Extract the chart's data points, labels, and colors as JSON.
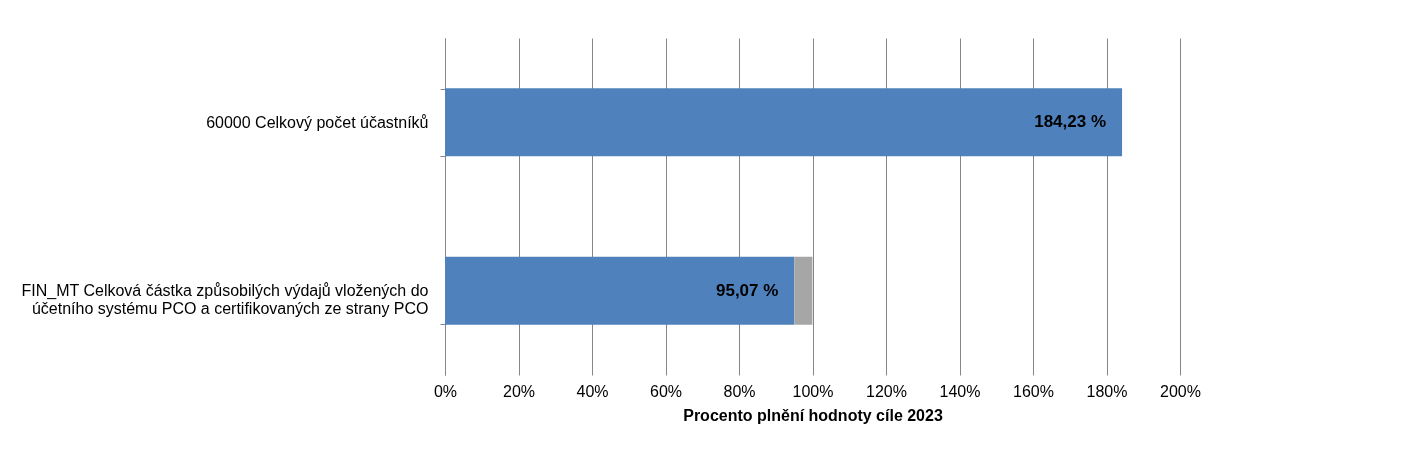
{
  "chart_data": {
    "type": "bar",
    "orientation": "horizontal",
    "stacked": true,
    "categories": [
      "60000 Celkový počet účastníků",
      "FIN_MT Celková částka způsobilých výdajů vložených do účetního systému PCO a certifikovaných ze strany PCO"
    ],
    "series": [
      {
        "color": "#4f81bd",
        "values": [
          184.23,
          95.07
        ],
        "value_labels": [
          "184,23 %",
          "95,07 %"
        ]
      },
      {
        "color": "#a6a6a6",
        "values": [
          null,
          4.9
        ]
      }
    ],
    "xlabel": "Procento plnění hodnoty cíle 2023",
    "xlim": [
      0,
      200
    ],
    "xticks": [
      {
        "value": 0,
        "label": "0%"
      },
      {
        "value": 20,
        "label": "20%"
      },
      {
        "value": 40,
        "label": "40%"
      },
      {
        "value": 60,
        "label": "60%"
      },
      {
        "value": 80,
        "label": "80%"
      },
      {
        "value": 100,
        "label": "100%"
      },
      {
        "value": 120,
        "label": "120%"
      },
      {
        "value": 140,
        "label": "140%"
      },
      {
        "value": 160,
        "label": "160%"
      },
      {
        "value": 180,
        "label": "180%"
      },
      {
        "value": 200,
        "label": "200%"
      }
    ],
    "grid": "x",
    "legend": false
  }
}
